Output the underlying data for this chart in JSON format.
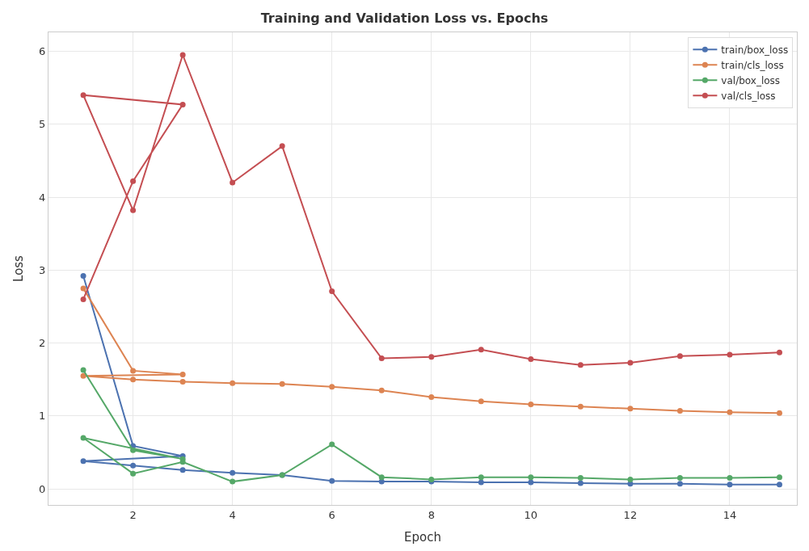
{
  "chart_data": {
    "type": "line",
    "title": "Training and Validation Loss vs. Epochs",
    "xlabel": "Epoch",
    "ylabel": "Loss",
    "x": [
      1,
      2,
      3,
      1,
      2,
      3,
      4,
      5,
      6,
      7,
      8,
      9,
      10,
      11,
      12,
      13,
      14,
      15
    ],
    "series": [
      {
        "name": "train/box_loss",
        "color": "#4c72b0",
        "values": [
          2.92,
          0.59,
          0.45,
          0.38,
          0.32,
          0.26,
          0.22,
          0.19,
          0.11,
          0.1,
          0.1,
          0.09,
          0.09,
          0.08,
          0.07,
          0.07,
          0.06,
          0.06
        ]
      },
      {
        "name": "train/cls_loss",
        "color": "#dd8452",
        "values": [
          2.75,
          1.62,
          1.57,
          1.55,
          1.5,
          1.47,
          1.45,
          1.44,
          1.4,
          1.35,
          1.26,
          1.2,
          1.16,
          1.13,
          1.1,
          1.07,
          1.05,
          1.04
        ]
      },
      {
        "name": "val/box_loss",
        "color": "#55a868",
        "values": [
          1.63,
          0.53,
          0.41,
          0.7,
          0.21,
          0.37,
          0.1,
          0.19,
          0.61,
          0.16,
          0.13,
          0.16,
          0.16,
          0.15,
          0.13,
          0.15,
          0.15,
          0.16
        ]
      },
      {
        "name": "val/cls_loss",
        "color": "#c44e52",
        "values": [
          2.6,
          4.22,
          5.27,
          5.4,
          3.82,
          5.95,
          4.2,
          4.7,
          2.71,
          1.79,
          1.81,
          1.91,
          1.78,
          1.7,
          1.73,
          1.82,
          1.84,
          1.87
        ]
      }
    ],
    "xlim": [
      0.3,
      15.35
    ],
    "xticks": [
      2,
      4,
      6,
      8,
      10,
      12,
      14
    ],
    "ylim": [
      -0.22,
      6.26
    ],
    "yticks": [
      0,
      1,
      2,
      3,
      4,
      5,
      6
    ],
    "grid": true,
    "legend": "top right",
    "marker": "circle",
    "line_style": "solid"
  }
}
